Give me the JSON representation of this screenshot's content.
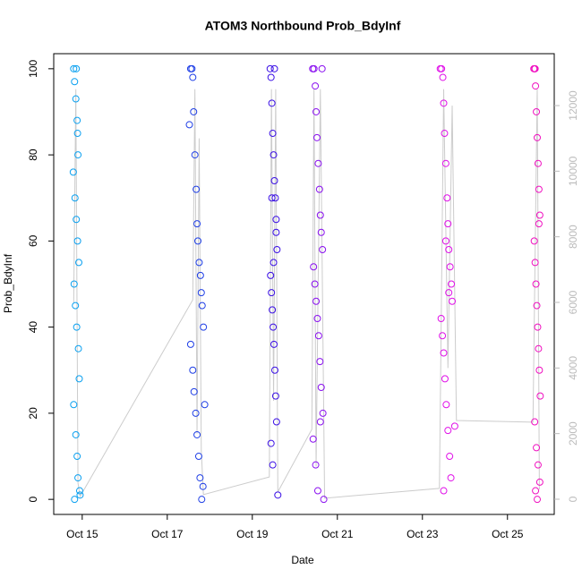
{
  "chart_data": {
    "type": "scatter",
    "title": "ATOM3 Northbound Prob_BdyInf",
    "x_label": "Date",
    "y_label": "Prob_BdyInf",
    "xlim": [
      14.33,
      26.1
    ],
    "xticks": [
      {
        "value": 15,
        "label": "Oct 15"
      },
      {
        "value": 17,
        "label": "Oct 17"
      },
      {
        "value": 19,
        "label": "Oct 19"
      },
      {
        "value": 21,
        "label": "Oct 21"
      },
      {
        "value": 23,
        "label": "Oct 23"
      },
      {
        "value": 25,
        "label": "Oct 25"
      }
    ],
    "ylim": [
      -3.5,
      103.5
    ],
    "yticks": [
      0,
      20,
      40,
      60,
      80,
      100
    ],
    "y2lim": [
      -464,
      13582
    ],
    "y2ticks": [
      0,
      2000,
      4000,
      6000,
      8000,
      10000,
      12000
    ],
    "series": [
      {
        "type": "line",
        "axis": "y2",
        "color": "#cccccc",
        "x": [
          14.8,
          14.85,
          14.9,
          14.95,
          17.6,
          17.65,
          17.7,
          17.75,
          17.8,
          17.85,
          19.4,
          19.45,
          19.5,
          19.55,
          19.6,
          20.4,
          20.45,
          20.5,
          20.6,
          20.7,
          23.4,
          23.5,
          23.6,
          23.7,
          23.8,
          25.6,
          25.7,
          25.75
        ],
        "values": [
          6000,
          12500,
          500,
          80,
          6080,
          12500,
          2000,
          11000,
          1500,
          140,
          680,
          12500,
          3000,
          12500,
          220,
          2130,
          12500,
          1000,
          12500,
          30,
          330,
          12500,
          4000,
          12000,
          2400,
          2350,
          12500,
          300
        ]
      },
      {
        "color": "#0aa0f0",
        "x": [
          14.8,
          14.82,
          14.85,
          14.88,
          14.9,
          14.79,
          14.83,
          14.86,
          14.89,
          14.92,
          14.81,
          14.84,
          14.87,
          14.91,
          14.93,
          14.8,
          14.85,
          14.88,
          14.9,
          14.94,
          14.82,
          14.86,
          14.89,
          14.95
        ],
        "values": [
          100,
          97,
          93,
          88,
          80,
          76,
          70,
          65,
          60,
          55,
          50,
          45,
          40,
          35,
          28,
          22,
          15,
          10,
          5,
          2,
          0,
          100,
          85,
          1
        ]
      },
      {
        "color": "#1f3fe6",
        "x": [
          17.52,
          17.55,
          17.58,
          17.6,
          17.62,
          17.65,
          17.68,
          17.7,
          17.72,
          17.75,
          17.78,
          17.8,
          17.82,
          17.85,
          17.55,
          17.6,
          17.63,
          17.67,
          17.7,
          17.74,
          17.77,
          17.81,
          17.84,
          17.88
        ],
        "values": [
          87,
          100,
          100,
          98,
          90,
          80,
          72,
          64,
          60,
          55,
          52,
          48,
          45,
          40,
          36,
          30,
          25,
          20,
          15,
          10,
          5,
          0,
          3,
          22
        ]
      },
      {
        "color": "#3b10e6",
        "x": [
          19.42,
          19.44,
          19.46,
          19.48,
          19.5,
          19.52,
          19.54,
          19.56,
          19.58,
          19.43,
          19.45,
          19.47,
          19.49,
          19.51,
          19.53,
          19.55,
          19.57,
          19.44,
          19.48,
          19.52,
          19.56,
          19.46,
          19.5,
          19.6
        ],
        "values": [
          100,
          98,
          92,
          85,
          80,
          74,
          70,
          65,
          58,
          52,
          48,
          44,
          40,
          36,
          30,
          24,
          18,
          13,
          8,
          100,
          62,
          70,
          55,
          1
        ]
      },
      {
        "color": "#8a10f0",
        "x": [
          20.42,
          20.45,
          20.48,
          20.5,
          20.52,
          20.55,
          20.58,
          20.6,
          20.62,
          20.65,
          20.44,
          20.47,
          20.5,
          20.53,
          20.56,
          20.59,
          20.62,
          20.66,
          20.43,
          20.49,
          20.54,
          20.6,
          20.64,
          20.68
        ],
        "values": [
          100,
          100,
          96,
          90,
          84,
          78,
          72,
          66,
          62,
          58,
          54,
          50,
          46,
          42,
          38,
          32,
          26,
          20,
          14,
          8,
          2,
          18,
          100,
          0
        ]
      },
      {
        "color": "#e010e8",
        "x": [
          23.42,
          23.45,
          23.48,
          23.5,
          23.52,
          23.55,
          23.58,
          23.6,
          23.62,
          23.65,
          23.68,
          23.7,
          23.44,
          23.47,
          23.5,
          23.53,
          23.56,
          23.6,
          23.64,
          23.67,
          23.5,
          23.55,
          23.62,
          23.76
        ],
        "values": [
          100,
          100,
          98,
          92,
          85,
          78,
          70,
          64,
          58,
          54,
          50,
          46,
          42,
          38,
          34,
          28,
          22,
          16,
          10,
          5,
          2,
          60,
          48,
          17
        ]
      },
      {
        "color": "#f010c0",
        "x": [
          25.62,
          25.64,
          25.66,
          25.68,
          25.7,
          25.72,
          25.74,
          25.76,
          25.63,
          25.65,
          25.67,
          25.69,
          25.71,
          25.73,
          25.75,
          25.77,
          25.64,
          25.68,
          25.72,
          25.76,
          25.66,
          25.7,
          25.74,
          25.65
        ],
        "values": [
          100,
          100,
          96,
          90,
          84,
          78,
          72,
          66,
          60,
          55,
          50,
          45,
          40,
          35,
          30,
          24,
          18,
          12,
          8,
          4,
          2,
          0,
          64,
          100
        ]
      }
    ]
  }
}
